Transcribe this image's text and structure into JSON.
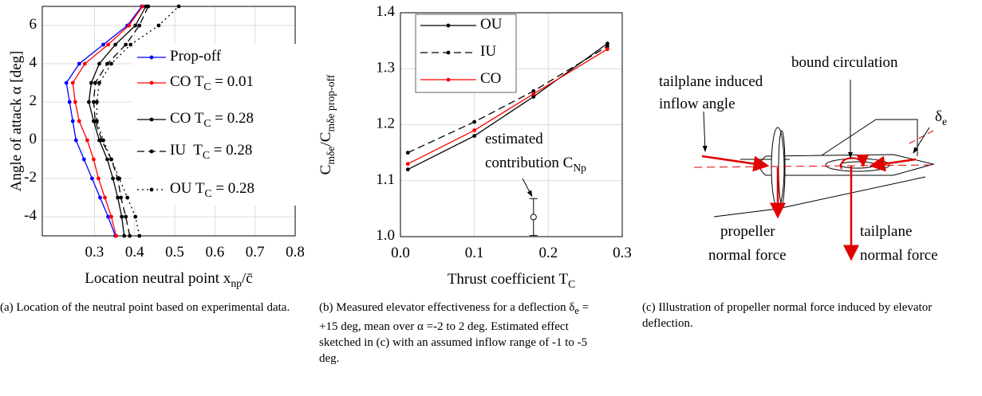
{
  "chart_data": [
    {
      "type": "line",
      "x_label": "Location neutral point x_{np}/c̄",
      "y_label": "Angle of attack α [deg]",
      "y": [
        -5,
        -4,
        -3,
        -2,
        -1,
        0,
        1,
        2,
        3,
        4,
        5,
        6,
        7
      ],
      "series": [
        {
          "name": "Prop-off",
          "color": "#0000ff",
          "line_style": "solid",
          "values": [
            0.352,
            0.334,
            0.314,
            0.294,
            0.274,
            0.254,
            0.246,
            0.238,
            0.23,
            0.262,
            0.322,
            0.382,
            0.418
          ]
        },
        {
          "name": "CO T_{C} = 0.01",
          "color": "#ff0000",
          "line_style": "solid",
          "values": [
            0.354,
            0.342,
            0.326,
            0.31,
            0.298,
            0.282,
            0.262,
            0.252,
            0.246,
            0.276,
            0.334,
            0.386,
            0.42
          ]
        },
        {
          "name": "CO T_{C} = 0.28",
          "color": "#000000",
          "line_style": "solid",
          "values": [
            0.374,
            0.368,
            0.358,
            0.346,
            0.332,
            0.312,
            0.298,
            0.286,
            0.292,
            0.312,
            0.352,
            0.402,
            0.428
          ]
        },
        {
          "name": "IU  T_{C} = 0.28",
          "color": "#000000",
          "line_style": "dashed",
          "values": [
            0.388,
            0.378,
            0.366,
            0.358,
            0.342,
            0.318,
            0.302,
            0.298,
            0.302,
            0.332,
            0.378,
            0.412,
            0.434
          ]
        },
        {
          "name": "OU T_{C} = 0.28",
          "color": "#000000",
          "line_style": "dotted",
          "values": [
            0.412,
            0.402,
            0.382,
            0.362,
            0.342,
            0.322,
            0.306,
            0.306,
            0.312,
            0.342,
            0.39,
            0.46,
            0.51
          ]
        }
      ],
      "xlim": [
        0.17,
        0.8
      ],
      "xticks": [
        0.3,
        0.4,
        0.5,
        0.6,
        0.7,
        0.8
      ],
      "ylim": [
        -5,
        7
      ],
      "yticks": [
        -4,
        -2,
        0,
        2,
        4,
        6
      ],
      "grid": true,
      "legend": "right"
    },
    {
      "type": "line",
      "x_label": "Thrust coefficient T_{C}",
      "y_label": "C_{mδe}/C_{mδe prop-off}",
      "x": [
        0.01,
        0.1,
        0.18,
        0.28
      ],
      "series": [
        {
          "name": "OU",
          "color": "#000000",
          "line_style": "solid",
          "values": [
            1.12,
            1.18,
            1.25,
            1.345
          ]
        },
        {
          "name": "IU",
          "color": "#000000",
          "line_style": "dashed",
          "values": [
            1.15,
            1.205,
            1.26,
            1.34
          ]
        },
        {
          "name": "CO",
          "color": "#ff0000",
          "line_style": "solid",
          "values": [
            1.13,
            1.19,
            1.255,
            1.335
          ]
        }
      ],
      "estimate": {
        "x": 0.18,
        "value": 1.035,
        "error": 0.033,
        "annotation": [
          "estimated",
          "contribution C_{Np}"
        ]
      },
      "xlim": [
        0,
        0.3
      ],
      "xticks": [
        {
          "value": 0,
          "label": "0.0"
        },
        0.1,
        0.2,
        0.3
      ],
      "ylim": [
        1.0,
        1.4
      ],
      "yticks": [
        {
          "value": 1.0,
          "label": "1.0"
        },
        1.1,
        1.2,
        1.3,
        1.4
      ],
      "grid": true,
      "legend": "upper left"
    }
  ],
  "diagram": {
    "labels": {
      "bound_circulation": "bound circulation",
      "inflow_angle": [
        "tailplane induced",
        "inflow angle"
      ],
      "deflection": "δ_{e}",
      "propeller_force": [
        "propeller",
        "normal force"
      ],
      "tailplane_force": [
        "tailplane",
        "normal force"
      ]
    }
  },
  "captions": [
    "(a) Location of the neutral point based on experimental data.",
    "(b) Measured elevator effectiveness for a deflection δ_{e} = +15 deg, mean over α =-2 to 2 deg. Estimated effect sketched in (c) with an assumed inflow range of -1 to -5 deg.",
    "(c) Illustration of propeller normal force induced by elevator deflection."
  ]
}
